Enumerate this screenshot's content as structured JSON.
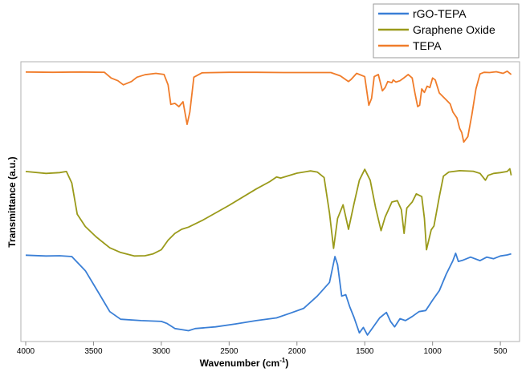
{
  "chart_data": {
    "type": "line",
    "title": "",
    "xlabel": "Wavenumber (cm",
    "xlabel_superscript": "-1",
    "xlabel_suffix": ")",
    "ylabel": "Transmittance (a.u.)",
    "xlim": [
      4000,
      400
    ],
    "xticks": [
      4000,
      3500,
      3000,
      2500,
      2000,
      1500,
      1000,
      500
    ],
    "ylim": [
      0,
      1
    ],
    "yticks_shown": false,
    "legend_position": "top-right",
    "series": [
      {
        "name": "rGO-TEPA",
        "color": "#3a7fd6",
        "points": [
          [
            4000,
            0.305
          ],
          [
            3850,
            0.302
          ],
          [
            3750,
            0.303
          ],
          [
            3660,
            0.3
          ],
          [
            3560,
            0.248
          ],
          [
            3460,
            0.165
          ],
          [
            3380,
            0.098
          ],
          [
            3300,
            0.07
          ],
          [
            3150,
            0.065
          ],
          [
            3000,
            0.062
          ],
          [
            2960,
            0.055
          ],
          [
            2900,
            0.036
          ],
          [
            2850,
            0.032
          ],
          [
            2800,
            0.028
          ],
          [
            2750,
            0.036
          ],
          [
            2600,
            0.042
          ],
          [
            2450,
            0.053
          ],
          [
            2300,
            0.065
          ],
          [
            2150,
            0.075
          ],
          [
            2050,
            0.092
          ],
          [
            1950,
            0.11
          ],
          [
            1850,
            0.155
          ],
          [
            1760,
            0.205
          ],
          [
            1720,
            0.3
          ],
          [
            1700,
            0.27
          ],
          [
            1670,
            0.155
          ],
          [
            1640,
            0.16
          ],
          [
            1610,
            0.115
          ],
          [
            1580,
            0.078
          ],
          [
            1540,
            0.02
          ],
          [
            1510,
            0.04
          ],
          [
            1480,
            0.012
          ],
          [
            1440,
            0.04
          ],
          [
            1390,
            0.075
          ],
          [
            1340,
            0.095
          ],
          [
            1310,
            0.062
          ],
          [
            1280,
            0.042
          ],
          [
            1240,
            0.072
          ],
          [
            1200,
            0.065
          ],
          [
            1150,
            0.08
          ],
          [
            1100,
            0.098
          ],
          [
            1050,
            0.102
          ],
          [
            1000,
            0.14
          ],
          [
            950,
            0.175
          ],
          [
            900,
            0.235
          ],
          [
            850,
            0.285
          ],
          [
            830,
            0.312
          ],
          [
            810,
            0.282
          ],
          [
            780,
            0.286
          ],
          [
            720,
            0.298
          ],
          [
            650,
            0.285
          ],
          [
            600,
            0.298
          ],
          [
            550,
            0.292
          ],
          [
            500,
            0.302
          ],
          [
            450,
            0.306
          ],
          [
            420,
            0.31
          ]
        ]
      },
      {
        "name": "Graphene Oxide",
        "color": "#9a9a1a",
        "points": [
          [
            4000,
            0.612
          ],
          [
            3850,
            0.605
          ],
          [
            3750,
            0.608
          ],
          [
            3700,
            0.612
          ],
          [
            3660,
            0.57
          ],
          [
            3620,
            0.455
          ],
          [
            3560,
            0.41
          ],
          [
            3480,
            0.372
          ],
          [
            3380,
            0.332
          ],
          [
            3300,
            0.315
          ],
          [
            3200,
            0.302
          ],
          [
            3120,
            0.303
          ],
          [
            3060,
            0.31
          ],
          [
            3000,
            0.325
          ],
          [
            2950,
            0.36
          ],
          [
            2900,
            0.385
          ],
          [
            2850,
            0.4
          ],
          [
            2800,
            0.408
          ],
          [
            2700,
            0.432
          ],
          [
            2500,
            0.488
          ],
          [
            2300,
            0.548
          ],
          [
            2200,
            0.575
          ],
          [
            2150,
            0.592
          ],
          [
            2120,
            0.588
          ],
          [
            2000,
            0.606
          ],
          [
            1900,
            0.614
          ],
          [
            1850,
            0.61
          ],
          [
            1800,
            0.59
          ],
          [
            1760,
            0.46
          ],
          [
            1730,
            0.33
          ],
          [
            1700,
            0.44
          ],
          [
            1660,
            0.49
          ],
          [
            1620,
            0.4
          ],
          [
            1580,
            0.492
          ],
          [
            1540,
            0.58
          ],
          [
            1500,
            0.62
          ],
          [
            1460,
            0.58
          ],
          [
            1420,
            0.48
          ],
          [
            1380,
            0.395
          ],
          [
            1350,
            0.445
          ],
          [
            1300,
            0.5
          ],
          [
            1260,
            0.505
          ],
          [
            1230,
            0.472
          ],
          [
            1210,
            0.385
          ],
          [
            1190,
            0.478
          ],
          [
            1150,
            0.5
          ],
          [
            1120,
            0.53
          ],
          [
            1080,
            0.52
          ],
          [
            1060,
            0.44
          ],
          [
            1045,
            0.325
          ],
          [
            1010,
            0.398
          ],
          [
            990,
            0.412
          ],
          [
            950,
            0.52
          ],
          [
            920,
            0.595
          ],
          [
            880,
            0.61
          ],
          [
            800,
            0.615
          ],
          [
            700,
            0.613
          ],
          [
            650,
            0.605
          ],
          [
            610,
            0.58
          ],
          [
            590,
            0.598
          ],
          [
            550,
            0.605
          ],
          [
            500,
            0.608
          ],
          [
            450,
            0.612
          ],
          [
            430,
            0.622
          ],
          [
            420,
            0.598
          ]
        ]
      },
      {
        "name": "TEPA",
        "color": "#f07c2a",
        "points": [
          [
            4000,
            0.977
          ],
          [
            3800,
            0.976
          ],
          [
            3600,
            0.977
          ],
          [
            3420,
            0.976
          ],
          [
            3370,
            0.955
          ],
          [
            3320,
            0.945
          ],
          [
            3280,
            0.93
          ],
          [
            3220,
            0.942
          ],
          [
            3180,
            0.958
          ],
          [
            3120,
            0.967
          ],
          [
            3040,
            0.972
          ],
          [
            2980,
            0.968
          ],
          [
            2950,
            0.93
          ],
          [
            2930,
            0.858
          ],
          [
            2900,
            0.862
          ],
          [
            2870,
            0.85
          ],
          [
            2840,
            0.868
          ],
          [
            2810,
            0.785
          ],
          [
            2790,
            0.83
          ],
          [
            2760,
            0.958
          ],
          [
            2700,
            0.974
          ],
          [
            2500,
            0.976
          ],
          [
            2300,
            0.976
          ],
          [
            2100,
            0.975
          ],
          [
            1900,
            0.975
          ],
          [
            1750,
            0.975
          ],
          [
            1680,
            0.963
          ],
          [
            1620,
            0.942
          ],
          [
            1600,
            0.95
          ],
          [
            1560,
            0.972
          ],
          [
            1500,
            0.96
          ],
          [
            1470,
            0.855
          ],
          [
            1450,
            0.88
          ],
          [
            1430,
            0.96
          ],
          [
            1400,
            0.968
          ],
          [
            1370,
            0.908
          ],
          [
            1350,
            0.92
          ],
          [
            1330,
            0.942
          ],
          [
            1300,
            0.938
          ],
          [
            1290,
            0.948
          ],
          [
            1270,
            0.94
          ],
          [
            1240,
            0.945
          ],
          [
            1210,
            0.956
          ],
          [
            1180,
            0.968
          ],
          [
            1150,
            0.955
          ],
          [
            1130,
            0.9
          ],
          [
            1110,
            0.85
          ],
          [
            1095,
            0.855
          ],
          [
            1080,
            0.915
          ],
          [
            1060,
            0.902
          ],
          [
            1040,
            0.925
          ],
          [
            1020,
            0.92
          ],
          [
            1000,
            0.955
          ],
          [
            980,
            0.948
          ],
          [
            950,
            0.9
          ],
          [
            900,
            0.875
          ],
          [
            870,
            0.86
          ],
          [
            850,
            0.83
          ],
          [
            820,
            0.808
          ],
          [
            800,
            0.77
          ],
          [
            785,
            0.755
          ],
          [
            770,
            0.72
          ],
          [
            740,
            0.74
          ],
          [
            710,
            0.82
          ],
          [
            680,
            0.915
          ],
          [
            650,
            0.97
          ],
          [
            620,
            0.976
          ],
          [
            580,
            0.975
          ],
          [
            530,
            0.978
          ],
          [
            480,
            0.972
          ],
          [
            450,
            0.98
          ],
          [
            420,
            0.968
          ]
        ]
      }
    ]
  }
}
